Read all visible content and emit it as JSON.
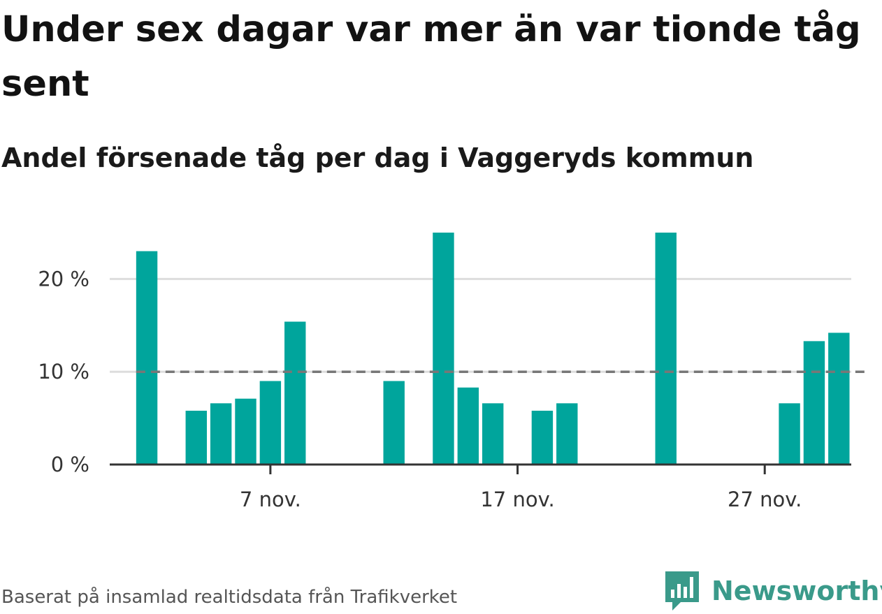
{
  "header": {
    "title": "Under sex dagar var mer än var tionde tåg sent",
    "subtitle": "Andel försenade tåg per dag i Vaggeryds kommun"
  },
  "footer": {
    "source": "Baserat på insamlad realtidsdata från Trafikverket",
    "brand": "Newsworthy",
    "brand_icon": "bar-chart-speech-bubble-icon",
    "brand_color": "#3a9a8a"
  },
  "chart_data": {
    "type": "bar",
    "bar_color": "#00a59c",
    "reference_line": {
      "value": 10,
      "style": "dashed",
      "color": "#777777"
    },
    "grid": true,
    "ylim": [
      0,
      25
    ],
    "y_ticks": [
      {
        "value": 0,
        "label": "0 %"
      },
      {
        "value": 10,
        "label": "10 %"
      },
      {
        "value": 20,
        "label": "20 %"
      }
    ],
    "x_ticks": [
      {
        "value": 7,
        "label": "7 nov."
      },
      {
        "value": 17,
        "label": "17 nov."
      },
      {
        "value": 27,
        "label": "27 nov."
      }
    ],
    "xlim": [
      0.5,
      30.5
    ],
    "x": [
      2,
      4,
      5,
      6,
      7,
      8,
      12,
      14,
      15,
      16,
      18,
      19,
      23,
      28,
      29,
      30
    ],
    "values": [
      23.0,
      5.8,
      6.6,
      7.1,
      9.0,
      15.4,
      9.0,
      25.0,
      8.3,
      6.6,
      5.8,
      6.6,
      25.0,
      6.6,
      13.3,
      14.2
    ],
    "title": "",
    "xlabel": "",
    "ylabel": ""
  }
}
